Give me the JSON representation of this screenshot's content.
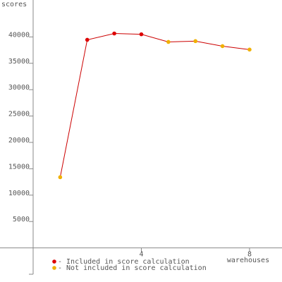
{
  "chart_data": {
    "type": "line",
    "y_label": "scores",
    "x_label": "warehouses",
    "x": [
      1,
      2,
      3,
      4,
      5,
      6,
      7,
      8
    ],
    "values": [
      13400,
      39450,
      40650,
      40500,
      39050,
      39200,
      38250,
      37600
    ],
    "line_color": "#cc0000",
    "point_group": [
      1,
      0,
      0,
      0,
      1,
      1,
      1,
      1
    ],
    "legend": [
      {
        "name": "- Included in score calculation",
        "color": "#dd0000"
      },
      {
        "name": "- Not included in score calculation",
        "color": "#f0b000"
      }
    ],
    "xlim": [
      0,
      9.2
    ],
    "xticks": [
      4,
      8
    ],
    "ylim": [
      -5000,
      47000
    ],
    "yticks": [
      {
        "value": -5000,
        "label": null
      },
      5000,
      10000,
      15000,
      20000,
      25000,
      30000,
      35000,
      40000
    ]
  }
}
